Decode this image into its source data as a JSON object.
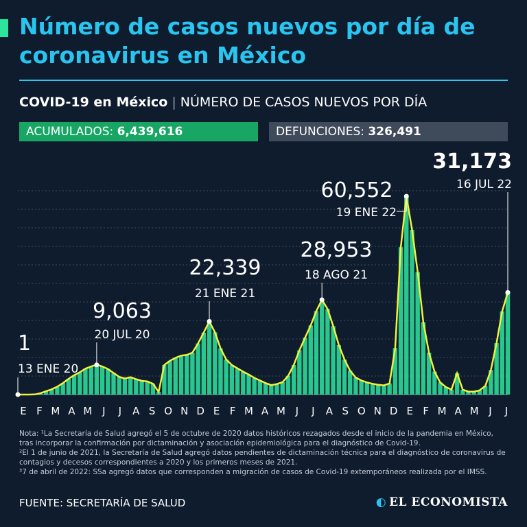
{
  "header": {
    "title": "Número de casos nuevos por día de coronavirus en México",
    "subtitle_strong": "COVID-19 en México",
    "subtitle_sep": "|",
    "subtitle_light": "NÚMERO DE CASOS NUEVOS POR DÍA"
  },
  "stats": {
    "acumulados_label": "ACUMULADOS:",
    "acumulados_value": "6,439,616",
    "defunciones_label": "DEFUNCIONES:",
    "defunciones_value": "326,491"
  },
  "notes": [
    "Nota: ¹La Secretaría de Salud agregó el 5 de octubre de 2020 datos históricos rezagados desde el inicio de la pandemia en México, tras incorporar la confirmación por dictaminación y asociación epidemiológica para el diagnóstico de Covid-19.",
    "²El 1 de junio de 2021, la Secretaría de Salud agregó datos pendientes de dictaminación técnica para el diagnóstico de coronavirus de contagios y decesos correspondientes a 2020 y los primeros meses de 2021.",
    "³7 de abril de 2022: SSa agregó datos que corresponden a migración de casos de Covid-19 extemporáneos realizada por el IMSS."
  ],
  "footer": {
    "source": "FUENTE: SECRETARÍA DE SALUD",
    "brand": "EL ECONOMISTA"
  },
  "colors": {
    "title": "#29c4f0",
    "bars": "#2ee59d",
    "line": "#f2f23a",
    "acumulados_bg": "#17a664",
    "defunciones_bg": "#3f4a5a",
    "background": "#0f1c2e"
  },
  "chart_data": {
    "type": "bar",
    "x_ticks": [
      "E",
      "F",
      "M",
      "A",
      "M",
      "J",
      "J",
      "A",
      "S",
      "O",
      "N",
      "D",
      "E",
      "F",
      "M",
      "A",
      "M",
      "J",
      "J",
      "A",
      "S",
      "O",
      "N",
      "D",
      "E",
      "F",
      "M",
      "A",
      "M",
      "J",
      "J"
    ],
    "ylim": [
      0,
      66000
    ],
    "grid": true,
    "series": [
      {
        "values": [
          0,
          0,
          5,
          50,
          400,
          1000,
          1600,
          2400,
          3500,
          4800,
          5900,
          6800,
          7900,
          8600,
          9063,
          8600,
          7800,
          6600,
          5400,
          4900,
          5300,
          4700,
          4200,
          4000,
          3300,
          800,
          9000,
          10300,
          11200,
          11900,
          12100,
          12800,
          15600,
          18900,
          22339,
          19000,
          14100,
          10700,
          9000,
          8000,
          7000,
          6100,
          5100,
          4300,
          3500,
          2900,
          3200,
          3800,
          5700,
          9000,
          13500,
          17400,
          21100,
          25500,
          28953,
          26100,
          20900,
          15100,
          10700,
          7300,
          5200,
          4300,
          3700,
          3300,
          3000,
          2800,
          3400,
          14200,
          45000,
          60552,
          50300,
          37400,
          22100,
          12800,
          7000,
          3700,
          2300,
          1500,
          6500,
          1500,
          900,
          900,
          1300,
          2600,
          7500,
          15700,
          25400,
          31173
        ]
      }
    ],
    "annotations": [
      {
        "value": "1",
        "date": "13 ENE 20",
        "x": 0,
        "y": 1
      },
      {
        "value": "9,063",
        "date": "20 JUL 20",
        "x": 14,
        "y": 9063
      },
      {
        "value": "22,339",
        "date": "21 ENE 21",
        "x": 34,
        "y": 22339
      },
      {
        "value": "28,953",
        "date": "18 AGO 21",
        "x": 54,
        "y": 28953
      },
      {
        "value": "60,552",
        "date": "19 ENE 22",
        "x": 69,
        "y": 60552
      },
      {
        "value": "31,173",
        "date": "16 JUL 22",
        "x": 87,
        "y": 31173
      }
    ]
  }
}
